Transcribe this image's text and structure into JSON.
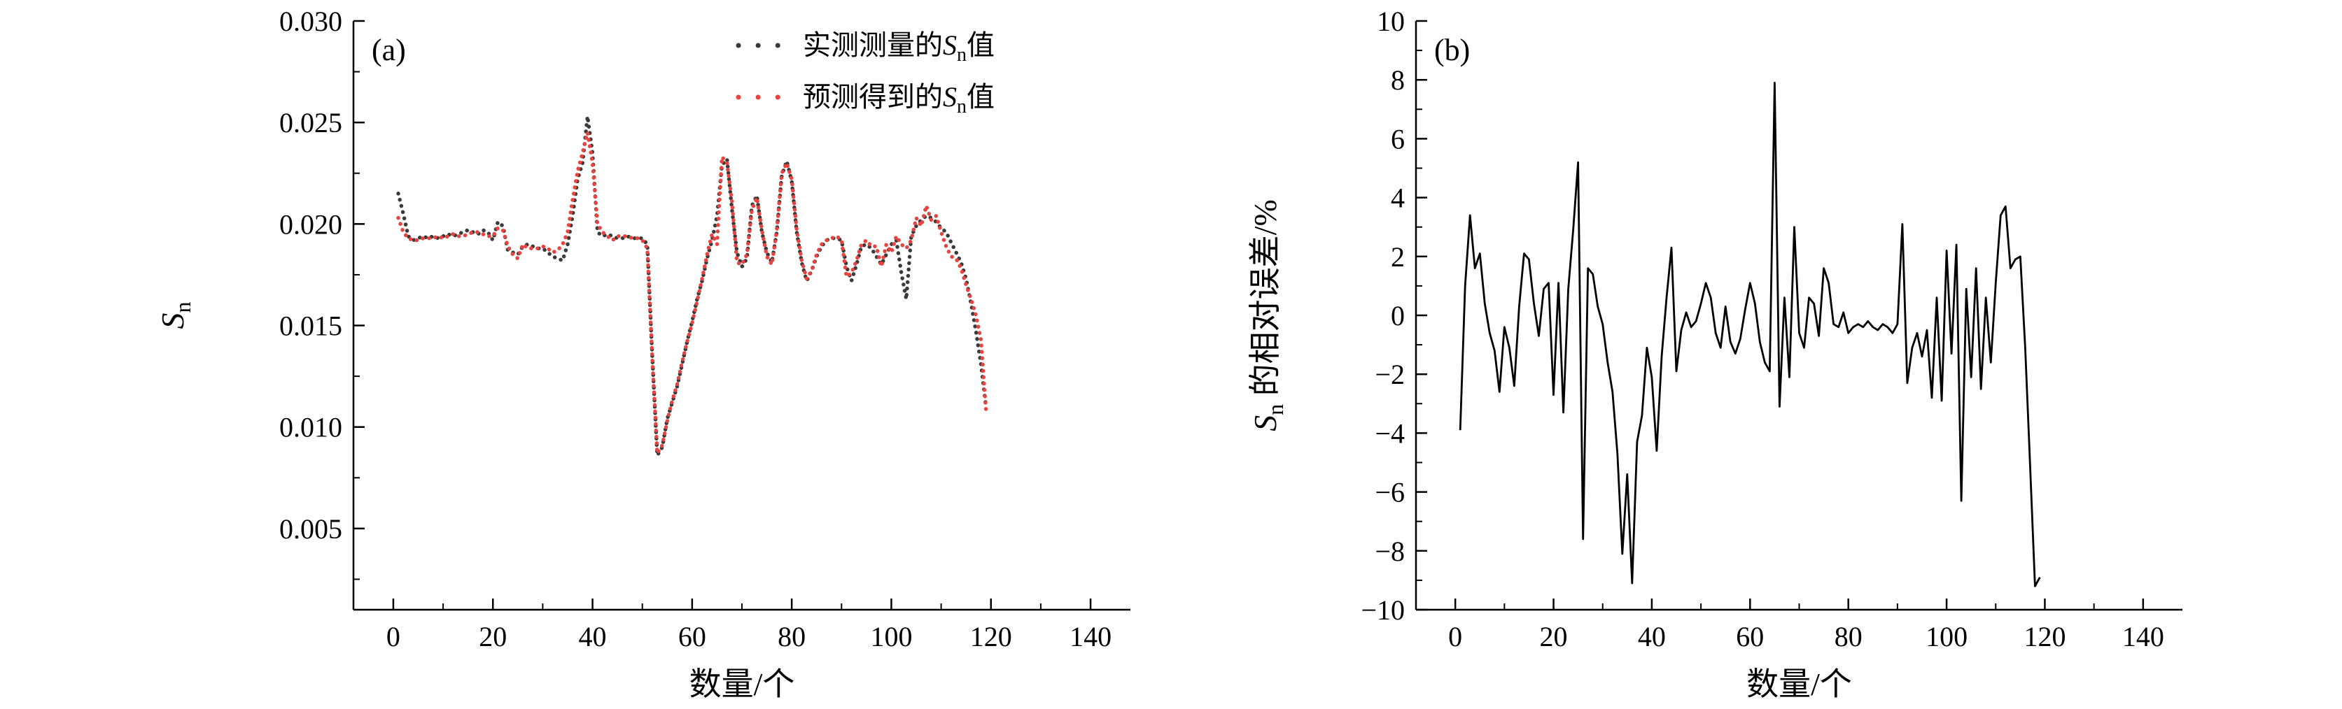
{
  "figure": {
    "background": "#ffffff",
    "axis_color": "#000000",
    "text_color": "#000000"
  },
  "chart_data": [
    {
      "id": "panel-a",
      "type": "line",
      "panel_label": "(a)",
      "xlabel": "数量/个",
      "ylabel_parts": [
        {
          "t": "S",
          "style": "italic"
        },
        {
          "t": "n",
          "style": "sub"
        }
      ],
      "xlim": [
        -8,
        148
      ],
      "ylim": [
        0.001,
        0.03
      ],
      "xticks": [
        0,
        20,
        40,
        60,
        80,
        100,
        120,
        140
      ],
      "xtick_labels": [
        "0",
        "20",
        "40",
        "60",
        "80",
        "100",
        "120",
        "140"
      ],
      "x_minor": [
        10,
        30,
        50,
        70,
        90,
        110,
        130
      ],
      "yticks": [
        0.005,
        0.01,
        0.015,
        0.02,
        0.025,
        0.03
      ],
      "ytick_labels": [
        "0.005",
        "0.010",
        "0.015",
        "0.020",
        "0.025",
        "0.030"
      ],
      "y_minor": [
        0.0025,
        0.0075,
        0.0125,
        0.0175,
        0.0225,
        0.0275
      ],
      "grid": false,
      "legend_position": "top-right",
      "x_rule": {
        "start": 1,
        "step": 1
      },
      "series": [
        {
          "key": "measured",
          "name_parts": [
            {
              "t": "实测测量的"
            },
            {
              "t": "S",
              "style": "italic"
            },
            {
              "t": "n",
              "style": "sub"
            },
            {
              "t": "值"
            }
          ],
          "color": "#3a3a3a",
          "style": "dotted",
          "values": [
            0.0215,
            0.0205,
            0.0194,
            0.0192,
            0.0193,
            0.0194,
            0.0193,
            0.0194,
            0.0193,
            0.0194,
            0.0195,
            0.0194,
            0.0195,
            0.0196,
            0.0197,
            0.0196,
            0.0195,
            0.0197,
            0.0196,
            0.0192,
            0.0201,
            0.0199,
            0.0187,
            0.0186,
            0.0185,
            0.0189,
            0.019,
            0.0189,
            0.0188,
            0.0188,
            0.0186,
            0.0184,
            0.0183,
            0.0182,
            0.019,
            0.0204,
            0.0222,
            0.023,
            0.0253,
            0.0235,
            0.0196,
            0.0194,
            0.0195,
            0.0194,
            0.0193,
            0.0193,
            0.0194,
            0.0193,
            0.0193,
            0.0193,
            0.019,
            0.0135,
            0.0086,
            0.009,
            0.0104,
            0.0112,
            0.012,
            0.0131,
            0.0142,
            0.0152,
            0.0163,
            0.0172,
            0.0183,
            0.0192,
            0.0204,
            0.0229,
            0.0232,
            0.0207,
            0.0186,
            0.0179,
            0.0183,
            0.0209,
            0.0214,
            0.0196,
            0.0186,
            0.0181,
            0.0196,
            0.0224,
            0.0231,
            0.0221,
            0.0196,
            0.0181,
            0.0172,
            0.0177,
            0.0184,
            0.0189,
            0.0192,
            0.0193,
            0.0193,
            0.0192,
            0.0179,
            0.0172,
            0.018,
            0.0189,
            0.019,
            0.0188,
            0.0184,
            0.018,
            0.0185,
            0.019,
            0.0192,
            0.0176,
            0.0163,
            0.0194,
            0.0199,
            0.0202,
            0.0204,
            0.0203,
            0.0201,
            0.0198,
            0.0196,
            0.0191,
            0.0186,
            0.0181,
            0.0173,
            0.0161,
            0.0147,
            0.0131,
            0.011
          ]
        },
        {
          "key": "predicted",
          "name_parts": [
            {
              "t": "预测得到的"
            },
            {
              "t": "S",
              "style": "italic"
            },
            {
              "t": "n",
              "style": "sub"
            },
            {
              "t": "值"
            }
          ],
          "color": "#e8433e",
          "style": "dotted",
          "values": [
            0.0203,
            0.0196,
            0.0193,
            0.0192,
            0.0192,
            0.0193,
            0.0193,
            0.0193,
            0.0194,
            0.0193,
            0.0194,
            0.0195,
            0.0194,
            0.0194,
            0.0195,
            0.0196,
            0.0196,
            0.0195,
            0.0194,
            0.0194,
            0.0198,
            0.0197,
            0.0189,
            0.0185,
            0.0183,
            0.019,
            0.0188,
            0.0188,
            0.0188,
            0.0189,
            0.0188,
            0.0186,
            0.0187,
            0.019,
            0.0196,
            0.0212,
            0.0226,
            0.0235,
            0.0245,
            0.023,
            0.02,
            0.0196,
            0.0194,
            0.0192,
            0.0194,
            0.0194,
            0.0194,
            0.0193,
            0.0193,
            0.0192,
            0.0188,
            0.0134,
            0.0087,
            0.0091,
            0.0103,
            0.0113,
            0.0121,
            0.0132,
            0.0142,
            0.0151,
            0.0162,
            0.0173,
            0.0185,
            0.0195,
            0.019,
            0.0233,
            0.023,
            0.0211,
            0.0181,
            0.018,
            0.0185,
            0.0207,
            0.0213,
            0.0197,
            0.0184,
            0.018,
            0.0197,
            0.0225,
            0.023,
            0.0222,
            0.0197,
            0.0182,
            0.0173,
            0.0177,
            0.0185,
            0.019,
            0.0192,
            0.0193,
            0.0194,
            0.0192,
            0.0174,
            0.0176,
            0.0182,
            0.019,
            0.0192,
            0.0189,
            0.0189,
            0.0179,
            0.019,
            0.0186,
            0.0194,
            0.019,
            0.0188,
            0.0192,
            0.0203,
            0.0199,
            0.0209,
            0.0202,
            0.0204,
            0.0196,
            0.0189,
            0.0184,
            0.0183,
            0.0178,
            0.017,
            0.0163,
            0.0155,
            0.0143,
            0.0108
          ]
        }
      ]
    },
    {
      "id": "panel-b",
      "type": "line",
      "panel_label": "(b)",
      "xlabel": "数量/个",
      "ylabel_parts": [
        {
          "t": "S",
          "style": "italic"
        },
        {
          "t": "n",
          "style": "sub"
        },
        {
          "t": " 的相对误差/%"
        }
      ],
      "xlim": [
        -8,
        148
      ],
      "ylim": [
        -10,
        10
      ],
      "xticks": [
        0,
        20,
        40,
        60,
        80,
        100,
        120,
        140
      ],
      "xtick_labels": [
        "0",
        "20",
        "40",
        "60",
        "80",
        "100",
        "120",
        "140"
      ],
      "x_minor": [
        10,
        30,
        50,
        70,
        90,
        110,
        130
      ],
      "yticks": [
        -10,
        -8,
        -6,
        -4,
        -2,
        0,
        2,
        4,
        6,
        8,
        10
      ],
      "ytick_labels": [
        "−10",
        "−8",
        "−6",
        "−4",
        "−2",
        "0",
        "2",
        "4",
        "6",
        "8",
        "10"
      ],
      "y_minor": [
        -9,
        -7,
        -5,
        -3,
        -1,
        1,
        3,
        5,
        7,
        9
      ],
      "grid": false,
      "x_rule": {
        "start": 1,
        "step": 1
      },
      "series": [
        {
          "key": "relative-error",
          "name_parts": [
            {
              "t": "相对误差"
            }
          ],
          "color": "#000000",
          "style": "solid",
          "values": [
            -3.9,
            1.0,
            3.4,
            1.6,
            2.1,
            0.4,
            -0.6,
            -1.2,
            -2.6,
            -0.4,
            -1.1,
            -2.4,
            0.3,
            2.1,
            1.9,
            0.4,
            -0.7,
            0.9,
            1.1,
            -2.7,
            1.1,
            -3.3,
            0.9,
            2.9,
            5.2,
            -7.6,
            1.6,
            1.4,
            0.3,
            -0.3,
            -1.6,
            -2.6,
            -4.7,
            -8.1,
            -5.4,
            -9.1,
            -4.3,
            -3.4,
            -1.1,
            -2.1,
            -4.6,
            -1.4,
            0.6,
            2.3,
            -1.9,
            -0.5,
            0.1,
            -0.4,
            -0.2,
            0.4,
            1.1,
            0.6,
            -0.6,
            -1.1,
            0.3,
            -0.9,
            -1.3,
            -0.8,
            0.2,
            1.1,
            0.4,
            -0.9,
            -1.6,
            -1.9,
            7.9,
            -3.1,
            0.6,
            -2.1,
            3.0,
            -0.6,
            -1.1,
            0.6,
            0.4,
            -0.7,
            1.6,
            1.1,
            -0.3,
            -0.4,
            0.1,
            -0.6,
            -0.4,
            -0.3,
            -0.4,
            -0.2,
            -0.4,
            -0.5,
            -0.3,
            -0.4,
            -0.6,
            -0.3,
            3.1,
            -2.3,
            -1.1,
            -0.6,
            -1.4,
            -0.5,
            -2.8,
            0.6,
            -2.9,
            2.2,
            -1.3,
            2.4,
            -6.3,
            0.9,
            -2.1,
            1.6,
            -2.5,
            0.6,
            -1.6,
            1.1,
            3.4,
            3.7,
            1.6,
            1.9,
            2.0,
            -1.1,
            -5.1,
            -9.2,
            -8.9
          ]
        }
      ]
    }
  ]
}
